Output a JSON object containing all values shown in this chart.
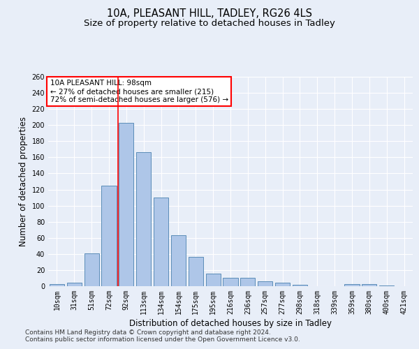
{
  "title1": "10A, PLEASANT HILL, TADLEY, RG26 4LS",
  "title2": "Size of property relative to detached houses in Tadley",
  "xlabel": "Distribution of detached houses by size in Tadley",
  "ylabel": "Number of detached properties",
  "categories": [
    "10sqm",
    "31sqm",
    "51sqm",
    "72sqm",
    "92sqm",
    "113sqm",
    "134sqm",
    "154sqm",
    "175sqm",
    "195sqm",
    "216sqm",
    "236sqm",
    "257sqm",
    "277sqm",
    "298sqm",
    "318sqm",
    "339sqm",
    "359sqm",
    "380sqm",
    "400sqm",
    "421sqm"
  ],
  "values": [
    3,
    4,
    41,
    125,
    203,
    166,
    110,
    63,
    36,
    16,
    10,
    10,
    6,
    4,
    2,
    0,
    0,
    3,
    3,
    1,
    0
  ],
  "bar_color": "#aec6e8",
  "bar_edge_color": "#5b8db8",
  "background_color": "#e8eef8",
  "grid_color": "#ffffff",
  "vline_color": "red",
  "vline_pos": 4,
  "annotation_text": "10A PLEASANT HILL: 98sqm\n← 27% of detached houses are smaller (215)\n72% of semi-detached houses are larger (576) →",
  "annotation_box_color": "white",
  "annotation_box_edge": "red",
  "ylim": [
    0,
    260
  ],
  "yticks": [
    0,
    20,
    40,
    60,
    80,
    100,
    120,
    140,
    160,
    180,
    200,
    220,
    240,
    260
  ],
  "footer1": "Contains HM Land Registry data © Crown copyright and database right 2024.",
  "footer2": "Contains public sector information licensed under the Open Government Licence v3.0.",
  "title1_fontsize": 10.5,
  "title2_fontsize": 9.5,
  "xlabel_fontsize": 8.5,
  "ylabel_fontsize": 8.5,
  "tick_fontsize": 7,
  "annotation_fontsize": 7.5,
  "footer_fontsize": 6.5
}
